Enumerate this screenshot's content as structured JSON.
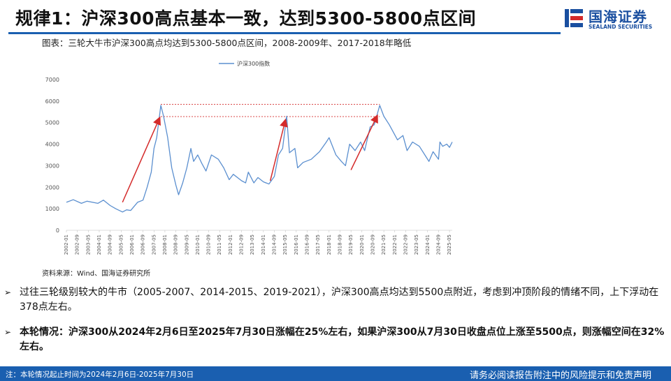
{
  "header": {
    "title": "规律1：沪深300高点基本一致，达到5300-5800点区间",
    "logo_cn": "国海证券",
    "logo_en": "SEALAND SECURITIES"
  },
  "figure": {
    "caption": "图表：三轮大牛市沪深300高点均达到5300-5800点区间，2008-2009年、2017-2018年略低",
    "source": "资料来源：Wind、国海证券研究所"
  },
  "chart_data": {
    "type": "line",
    "ylim": [
      0,
      7000
    ],
    "yticks": [
      "0",
      "1000",
      "2000",
      "3000",
      "4000",
      "5000",
      "6000",
      "7000"
    ],
    "xlim": [
      "2002-01",
      "2025-07"
    ],
    "xticks": [
      "2002-01",
      "2002-09",
      "2003-05",
      "2004-01",
      "2004-09",
      "2005-05",
      "2006-01",
      "2006-09",
      "2007-05",
      "2008-01",
      "2008-09",
      "2009-05",
      "2010-01",
      "2010-09",
      "2011-05",
      "2012-01",
      "2012-09",
      "2013-05",
      "2014-01",
      "2014-09",
      "2015-05",
      "2016-01",
      "2016-09",
      "2017-05",
      "2018-01",
      "2018-09",
      "2019-05",
      "2020-01",
      "2020-09",
      "2021-05",
      "2022-01",
      "2022-09",
      "2023-05",
      "2024-01",
      "2024-09",
      "2025-05"
    ],
    "legend": "top-center",
    "colors": {
      "line": "#5b8fcf",
      "arrow": "#d42a2a",
      "ref": "#d42a2a"
    },
    "series": [
      {
        "name": "沪深300指数",
        "points": [
          [
            "2002-01",
            1300
          ],
          [
            "2002-06",
            1420
          ],
          [
            "2002-12",
            1250
          ],
          [
            "2003-04",
            1350
          ],
          [
            "2003-12",
            1250
          ],
          [
            "2004-04",
            1400
          ],
          [
            "2004-09",
            1150
          ],
          [
            "2005-01",
            1000
          ],
          [
            "2005-06",
            850
          ],
          [
            "2005-09",
            950
          ],
          [
            "2005-12",
            920
          ],
          [
            "2006-05",
            1300
          ],
          [
            "2006-09",
            1400
          ],
          [
            "2006-12",
            2000
          ],
          [
            "2007-03",
            2700
          ],
          [
            "2007-05",
            3800
          ],
          [
            "2007-07",
            4300
          ],
          [
            "2007-10",
            5800
          ],
          [
            "2007-12",
            5300
          ],
          [
            "2008-03",
            4300
          ],
          [
            "2008-06",
            2900
          ],
          [
            "2008-09",
            2100
          ],
          [
            "2008-11",
            1650
          ],
          [
            "2009-02",
            2200
          ],
          [
            "2009-05",
            2900
          ],
          [
            "2009-08",
            3800
          ],
          [
            "2009-10",
            3200
          ],
          [
            "2010-01",
            3500
          ],
          [
            "2010-04",
            3100
          ],
          [
            "2010-07",
            2750
          ],
          [
            "2010-11",
            3500
          ],
          [
            "2011-04",
            3300
          ],
          [
            "2011-08",
            2900
          ],
          [
            "2011-12",
            2350
          ],
          [
            "2012-03",
            2600
          ],
          [
            "2012-09",
            2300
          ],
          [
            "2012-12",
            2200
          ],
          [
            "2013-02",
            2700
          ],
          [
            "2013-06",
            2200
          ],
          [
            "2013-09",
            2450
          ],
          [
            "2014-01",
            2250
          ],
          [
            "2014-05",
            2150
          ],
          [
            "2014-09",
            2500
          ],
          [
            "2014-12",
            3500
          ],
          [
            "2015-03",
            3800
          ],
          [
            "2015-06",
            5300
          ],
          [
            "2015-08",
            3600
          ],
          [
            "2015-12",
            3800
          ],
          [
            "2016-02",
            2900
          ],
          [
            "2016-06",
            3150
          ],
          [
            "2016-12",
            3300
          ],
          [
            "2017-06",
            3650
          ],
          [
            "2017-11",
            4100
          ],
          [
            "2018-01",
            4300
          ],
          [
            "2018-06",
            3500
          ],
          [
            "2018-10",
            3200
          ],
          [
            "2019-01",
            3000
          ],
          [
            "2019-04",
            4000
          ],
          [
            "2019-08",
            3700
          ],
          [
            "2019-12",
            4100
          ],
          [
            "2020-03",
            3700
          ],
          [
            "2020-07",
            4800
          ],
          [
            "2020-10",
            4900
          ],
          [
            "2021-02",
            5800
          ],
          [
            "2021-05",
            5300
          ],
          [
            "2021-09",
            4900
          ],
          [
            "2022-03",
            4200
          ],
          [
            "2022-07",
            4400
          ],
          [
            "2022-10",
            3700
          ],
          [
            "2023-02",
            4100
          ],
          [
            "2023-07",
            3900
          ],
          [
            "2023-12",
            3400
          ],
          [
            "2024-02",
            3200
          ],
          [
            "2024-05",
            3650
          ],
          [
            "2024-09",
            3300
          ],
          [
            "2024-10",
            4100
          ],
          [
            "2024-12",
            3900
          ],
          [
            "2025-03",
            4000
          ],
          [
            "2025-05",
            3850
          ],
          [
            "2025-07",
            4100
          ]
        ]
      }
    ],
    "reference_lines": [
      {
        "y": 5850,
        "from": "2007-10",
        "to": "2021-02"
      },
      {
        "y": 5280,
        "from": "2007-10",
        "to": "2021-02"
      }
    ],
    "arrows": [
      {
        "from": [
          "2005-06",
          1300
        ],
        "to": [
          "2007-09",
          5200
        ]
      },
      {
        "from": [
          "2014-06",
          2300
        ],
        "to": [
          "2015-05",
          5100
        ]
      },
      {
        "from": [
          "2019-05",
          2800
        ],
        "to": [
          "2020-12",
          5300
        ]
      }
    ]
  },
  "bullets": [
    {
      "mark": "➢",
      "text": "过往三轮级别较大的牛市（2005-2007、2014-2015、2019-2021），沪深300高点均达到5500点附近，考虑到冲顶阶段的情绪不同，上下浮动在378点左右。"
    },
    {
      "mark": "➢",
      "text": "本轮情况：沪深300从2024年2月6日至2025年7月30日涨幅在25%左右，如果沪深300从7月30日收盘点位上涨至5500点，则涨幅空间在32%左右。"
    }
  ],
  "footer": {
    "note": "注：本轮情况起止时间为2024年2月6日-2025年7月30日",
    "disclaimer": "请务必阅读报告附注中的风险提示和免责声明"
  }
}
